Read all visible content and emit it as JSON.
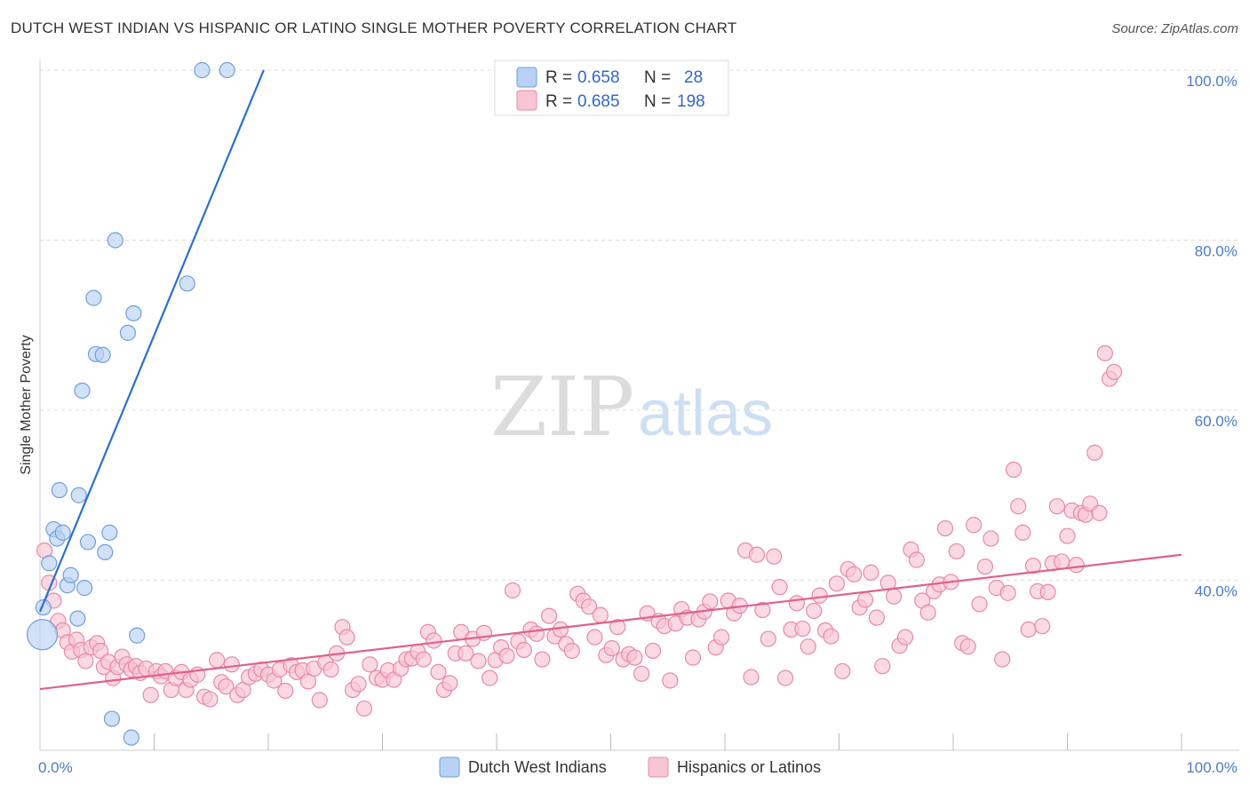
{
  "title": "DUTCH WEST INDIAN VS HISPANIC OR LATINO SINGLE MOTHER POVERTY CORRELATION CHART",
  "source": "Source: ZipAtlas.com",
  "watermark": {
    "zip": "ZIP",
    "atlas": "atlas"
  },
  "colors": {
    "blue_fill": "#b9d1f3",
    "blue_stroke": "#6f9fdc",
    "blue_line": "#2a6fcf",
    "pink_fill": "#f7c5d3",
    "pink_stroke": "#e889a6",
    "pink_line": "#e0608a",
    "grid": "#dddddd",
    "tick_text": "#4a7cc9"
  },
  "legend": {
    "rows": [
      {
        "r_label": "R = ",
        "r_value": "0.658",
        "n_label": "N = ",
        "n_value": "28"
      },
      {
        "r_label": "R = ",
        "r_value": "0.685",
        "n_label": "N = ",
        "n_value": "198"
      }
    ]
  },
  "bottom_legend": [
    "Dutch West Indians",
    "Hispanics or Latinos"
  ],
  "chart_data": {
    "type": "scatter",
    "title": "DUTCH WEST INDIAN VS HISPANIC OR LATINO SINGLE MOTHER POVERTY CORRELATION CHART",
    "xlabel": "",
    "ylabel": "Single Mother Poverty",
    "xlim": [
      0,
      100
    ],
    "ylim": [
      20,
      100
    ],
    "x_tick_labels": [
      "0.0%",
      "100.0%"
    ],
    "y_ticks": [
      40,
      60,
      80,
      100
    ],
    "y_tick_labels": [
      "40.0%",
      "60.0%",
      "80.0%",
      "100.0%"
    ],
    "grid": true,
    "legend_position": "top-center",
    "series": [
      {
        "name": "Dutch West Indians",
        "r": 0.658,
        "n": 28,
        "trend": {
          "x": [
            0,
            19.6
          ],
          "y": [
            36.3,
            100
          ]
        },
        "points": [
          [
            0.2,
            33.6
          ],
          [
            0.3,
            36.8
          ],
          [
            0.8,
            42.0
          ],
          [
            1.2,
            46.0
          ],
          [
            1.5,
            44.9
          ],
          [
            1.7,
            50.6
          ],
          [
            2.0,
            45.6
          ],
          [
            2.4,
            39.4
          ],
          [
            2.7,
            40.6
          ],
          [
            3.3,
            35.5
          ],
          [
            3.4,
            50.0
          ],
          [
            3.7,
            62.3
          ],
          [
            3.9,
            39.1
          ],
          [
            4.2,
            44.5
          ],
          [
            4.7,
            73.2
          ],
          [
            4.9,
            66.6
          ],
          [
            5.5,
            66.5
          ],
          [
            5.7,
            43.3
          ],
          [
            6.1,
            45.6
          ],
          [
            6.3,
            23.7
          ],
          [
            6.6,
            80.0
          ],
          [
            7.7,
            69.1
          ],
          [
            8.0,
            21.5
          ],
          [
            8.2,
            71.4
          ],
          [
            8.5,
            33.5
          ],
          [
            12.9,
            74.9
          ],
          [
            14.2,
            100.0
          ],
          [
            16.4,
            100.0
          ]
        ]
      },
      {
        "name": "Hispanics or Latinos",
        "r": 0.685,
        "n": 198,
        "trend": {
          "x": [
            0,
            100
          ],
          "y": [
            27.2,
            43.0
          ]
        },
        "points": [
          [
            0.4,
            43.5
          ],
          [
            0.8,
            39.7
          ],
          [
            1.2,
            37.6
          ],
          [
            1.6,
            35.2
          ],
          [
            2.0,
            34.1
          ],
          [
            2.4,
            32.7
          ],
          [
            2.8,
            31.6
          ],
          [
            3.2,
            33.0
          ],
          [
            3.6,
            31.8
          ],
          [
            4.0,
            30.5
          ],
          [
            4.5,
            32.1
          ],
          [
            5.0,
            32.6
          ],
          [
            5.3,
            31.7
          ],
          [
            5.6,
            29.8
          ],
          [
            6.0,
            30.4
          ],
          [
            6.4,
            28.5
          ],
          [
            6.8,
            29.8
          ],
          [
            7.2,
            31.0
          ],
          [
            7.6,
            30.1
          ],
          [
            8.0,
            29.5
          ],
          [
            8.4,
            29.9
          ],
          [
            8.8,
            29.1
          ],
          [
            9.3,
            29.6
          ],
          [
            9.7,
            26.5
          ],
          [
            10.2,
            29.3
          ],
          [
            10.6,
            28.7
          ],
          [
            11.0,
            29.3
          ],
          [
            11.5,
            27.1
          ],
          [
            11.9,
            28.5
          ],
          [
            12.4,
            29.2
          ],
          [
            12.8,
            27.1
          ],
          [
            13.2,
            28.3
          ],
          [
            13.8,
            28.9
          ],
          [
            14.4,
            26.3
          ],
          [
            14.9,
            26.0
          ],
          [
            15.5,
            30.6
          ],
          [
            15.9,
            28.0
          ],
          [
            16.3,
            27.5
          ],
          [
            16.8,
            30.1
          ],
          [
            17.3,
            26.5
          ],
          [
            17.8,
            27.1
          ],
          [
            18.3,
            28.6
          ],
          [
            18.9,
            29.0
          ],
          [
            19.4,
            29.5
          ],
          [
            20.0,
            28.9
          ],
          [
            20.5,
            28.2
          ],
          [
            21.0,
            29.5
          ],
          [
            21.5,
            27.0
          ],
          [
            22.0,
            30.0
          ],
          [
            22.5,
            29.2
          ],
          [
            23.0,
            29.4
          ],
          [
            23.5,
            28.1
          ],
          [
            24.0,
            29.6
          ],
          [
            24.5,
            25.9
          ],
          [
            25.0,
            30.3
          ],
          [
            25.5,
            29.5
          ],
          [
            26.0,
            31.4
          ],
          [
            26.5,
            34.5
          ],
          [
            26.9,
            33.3
          ],
          [
            27.4,
            27.1
          ],
          [
            27.9,
            27.8
          ],
          [
            28.4,
            24.9
          ],
          [
            28.9,
            30.1
          ],
          [
            29.5,
            28.5
          ],
          [
            30.0,
            28.3
          ],
          [
            30.5,
            29.4
          ],
          [
            31.0,
            28.3
          ],
          [
            31.6,
            29.6
          ],
          [
            32.1,
            30.7
          ],
          [
            32.6,
            30.8
          ],
          [
            33.1,
            31.6
          ],
          [
            33.6,
            30.7
          ],
          [
            34.0,
            33.9
          ],
          [
            34.5,
            32.9
          ],
          [
            34.9,
            29.2
          ],
          [
            35.4,
            27.1
          ],
          [
            35.9,
            27.9
          ],
          [
            36.4,
            31.4
          ],
          [
            36.9,
            33.9
          ],
          [
            37.3,
            31.4
          ],
          [
            37.9,
            33.1
          ],
          [
            38.4,
            30.5
          ],
          [
            38.9,
            33.8
          ],
          [
            39.4,
            28.5
          ],
          [
            39.9,
            30.6
          ],
          [
            40.4,
            32.1
          ],
          [
            40.9,
            31.1
          ],
          [
            41.4,
            38.8
          ],
          [
            41.9,
            32.8
          ],
          [
            42.4,
            31.8
          ],
          [
            43.0,
            34.2
          ],
          [
            43.5,
            33.7
          ],
          [
            44.0,
            30.7
          ],
          [
            44.6,
            35.8
          ],
          [
            45.1,
            33.4
          ],
          [
            45.6,
            34.2
          ],
          [
            46.1,
            32.5
          ],
          [
            46.6,
            31.7
          ],
          [
            47.1,
            38.4
          ],
          [
            47.6,
            37.6
          ],
          [
            48.1,
            36.9
          ],
          [
            48.6,
            33.3
          ],
          [
            49.1,
            35.9
          ],
          [
            49.6,
            31.2
          ],
          [
            50.1,
            32.0
          ],
          [
            50.6,
            34.5
          ],
          [
            51.1,
            30.7
          ],
          [
            51.6,
            31.3
          ],
          [
            52.1,
            30.9
          ],
          [
            52.7,
            29.0
          ],
          [
            53.2,
            36.1
          ],
          [
            53.7,
            31.7
          ],
          [
            54.2,
            35.2
          ],
          [
            54.7,
            34.6
          ],
          [
            55.2,
            28.2
          ],
          [
            55.7,
            34.9
          ],
          [
            56.2,
            36.6
          ],
          [
            56.7,
            35.6
          ],
          [
            57.2,
            30.9
          ],
          [
            57.7,
            35.4
          ],
          [
            58.2,
            36.3
          ],
          [
            58.7,
            37.5
          ],
          [
            59.2,
            32.1
          ],
          [
            59.7,
            33.3
          ],
          [
            60.3,
            37.6
          ],
          [
            60.8,
            36.1
          ],
          [
            61.3,
            37.0
          ],
          [
            61.8,
            43.5
          ],
          [
            62.3,
            28.6
          ],
          [
            62.8,
            43.0
          ],
          [
            63.3,
            36.5
          ],
          [
            63.8,
            33.1
          ],
          [
            64.3,
            42.8
          ],
          [
            64.8,
            39.2
          ],
          [
            65.3,
            28.5
          ],
          [
            65.8,
            34.2
          ],
          [
            66.3,
            37.3
          ],
          [
            66.8,
            34.3
          ],
          [
            67.3,
            32.2
          ],
          [
            67.8,
            36.4
          ],
          [
            68.3,
            38.2
          ],
          [
            68.8,
            34.1
          ],
          [
            69.3,
            33.4
          ],
          [
            69.8,
            39.6
          ],
          [
            70.3,
            29.3
          ],
          [
            70.8,
            41.3
          ],
          [
            71.3,
            40.7
          ],
          [
            71.8,
            36.8
          ],
          [
            72.3,
            37.7
          ],
          [
            72.8,
            40.9
          ],
          [
            73.3,
            35.6
          ],
          [
            73.8,
            29.9
          ],
          [
            74.3,
            39.7
          ],
          [
            74.8,
            38.1
          ],
          [
            75.3,
            32.3
          ],
          [
            75.8,
            33.3
          ],
          [
            76.3,
            43.6
          ],
          [
            76.8,
            42.4
          ],
          [
            77.3,
            37.6
          ],
          [
            77.8,
            36.2
          ],
          [
            78.3,
            38.7
          ],
          [
            78.8,
            39.5
          ],
          [
            79.3,
            46.1
          ],
          [
            79.8,
            39.8
          ],
          [
            80.3,
            43.4
          ],
          [
            80.8,
            32.6
          ],
          [
            81.3,
            32.2
          ],
          [
            81.8,
            46.5
          ],
          [
            82.3,
            37.2
          ],
          [
            82.8,
            41.6
          ],
          [
            83.3,
            44.9
          ],
          [
            83.8,
            39.1
          ],
          [
            84.3,
            30.7
          ],
          [
            84.8,
            38.5
          ],
          [
            85.3,
            53.0
          ],
          [
            85.7,
            48.7
          ],
          [
            86.1,
            45.6
          ],
          [
            86.6,
            34.2
          ],
          [
            87.0,
            41.7
          ],
          [
            87.4,
            38.7
          ],
          [
            87.8,
            34.6
          ],
          [
            88.3,
            38.6
          ],
          [
            88.7,
            42.0
          ],
          [
            89.1,
            48.7
          ],
          [
            89.5,
            42.2
          ],
          [
            90.0,
            45.2
          ],
          [
            90.4,
            48.2
          ],
          [
            90.8,
            41.8
          ],
          [
            91.2,
            47.9
          ],
          [
            91.6,
            47.7
          ],
          [
            92.0,
            49.0
          ],
          [
            92.4,
            55.0
          ],
          [
            92.8,
            47.9
          ],
          [
            93.3,
            66.7
          ],
          [
            93.7,
            63.7
          ],
          [
            94.1,
            64.5
          ]
        ]
      }
    ]
  }
}
